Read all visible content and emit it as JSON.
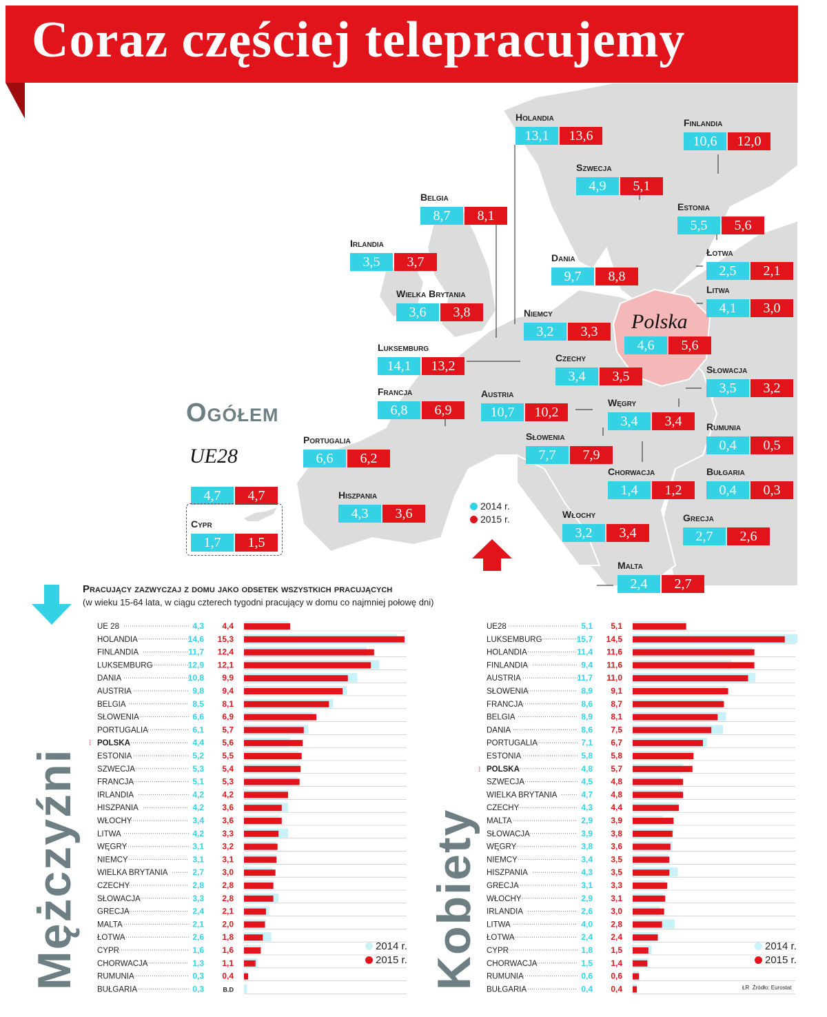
{
  "title": "Coraz częściej telepracujemy",
  "ogolem_label": "Ogółem",
  "polska_label": "Polska",
  "ue28": {
    "name": "UE28",
    "v2014": "4,7",
    "v2015": "4,7"
  },
  "cypr": {
    "name": "Cypr",
    "v2014": "1,7",
    "v2015": "1,5"
  },
  "map_legend": {
    "y2014": "2014 r.",
    "y2015": "2015 r."
  },
  "colors": {
    "y2014": "#35d2e6",
    "y2015": "#e2141b",
    "title_bg": "#e2141b",
    "map_land": "#dcdcdc",
    "poland": "#f5b8b8"
  },
  "chart_data": [
    {
      "type": "bar",
      "panel": "Mężczyźni",
      "title": "Pracujący zazwyczaj z domu jako odsetek wszystkich pracujących",
      "subtitle": "(w wieku 15-64 lata, w ciągu czterech tygodni pracujący w domu co najmniej połowę dni)",
      "legend": [
        "2014 r.",
        "2015 r."
      ],
      "categories": [
        "UE 28",
        "HOLANDIA",
        "FINLANDIA",
        "LUKSEMBURG",
        "DANIA",
        "AUSTRIA",
        "BELGIA",
        "SŁOWENIA",
        "PORTUGALIA",
        "POLSKA",
        "ESTONIA",
        "SZWECJA",
        "FRANCJA",
        "IRLANDIA",
        "HISZPANIA",
        "WŁOCHY",
        "LITWA",
        "WĘGRY",
        "NIEMCY",
        "WIELKA BRYTANIA",
        "CZECHY",
        "SŁOWACJA",
        "GRECJA",
        "MALTA",
        "ŁOTWA",
        "CYPR",
        "CHORWACJA",
        "RUMUNIA",
        "BUŁGARIA"
      ],
      "series": [
        {
          "name": "2014 r.",
          "values": [
            4.3,
            14.6,
            11.7,
            12.9,
            10.8,
            9.8,
            8.5,
            6.6,
            6.1,
            4.4,
            5.2,
            5.3,
            5.1,
            4.2,
            4.2,
            3.4,
            4.2,
            3.1,
            3.1,
            2.7,
            2.8,
            3.3,
            2.4,
            2.1,
            2.6,
            1.6,
            1.3,
            0.3,
            0.3
          ]
        },
        {
          "name": "2015 r.",
          "values": [
            4.4,
            15.3,
            12.4,
            12.1,
            9.9,
            9.4,
            8.1,
            6.9,
            5.7,
            5.6,
            5.5,
            5.4,
            5.3,
            4.2,
            3.6,
            3.6,
            3.3,
            3.2,
            3.1,
            3.0,
            2.8,
            2.8,
            2.1,
            2.0,
            1.8,
            1.6,
            1.1,
            0.4,
            null
          ]
        }
      ],
      "labels2014": [
        "4,3",
        "14,6",
        "11,7",
        "12,9",
        "10,8",
        "9,8",
        "8,5",
        "6,6",
        "6,1",
        "4,4",
        "5,2",
        "5,3",
        "5,1",
        "4,2",
        "4,2",
        "3,4",
        "4,2",
        "3,1",
        "3,1",
        "2,7",
        "2,8",
        "3,3",
        "2,4",
        "2,1",
        "2,6",
        "1,6",
        "1,3",
        "0,3",
        "0,3"
      ],
      "labels2015": [
        "4,4",
        "15,3",
        "12,4",
        "12,1",
        "9,9",
        "9,4",
        "8,1",
        "6,9",
        "5,7",
        "5,6",
        "5,5",
        "5,4",
        "5,3",
        "4,2",
        "3,6",
        "3,6",
        "3,3",
        "3,2",
        "3,1",
        "3,0",
        "2,8",
        "2,8",
        "2,1",
        "2,0",
        "1,8",
        "1,6",
        "1,1",
        "0,4",
        "B.D"
      ],
      "highlight": "POLSKA",
      "xlim": [
        0,
        15.5
      ]
    },
    {
      "type": "bar",
      "panel": "Kobiety",
      "legend": [
        "2014 r.",
        "2015 r."
      ],
      "categories": [
        "UE28",
        "LUKSEMBURG",
        "HOLANDIA",
        "FINLANDIA",
        "AUSTRIA",
        "SŁOWENIA",
        "FRANCJA",
        "BELGIA",
        "DANIA",
        "PORTUGALIA",
        "ESTONIA",
        "POLSKA",
        "SZWECJA",
        "WIELKA BRYTANIA",
        "CZECHY",
        "MALTA",
        "SŁOWACJA",
        "WĘGRY",
        "NIEMCY",
        "HISZPANIA",
        "GRECJA",
        "WŁOCHY",
        "IRLANDIA",
        "LITWA",
        "ŁOTWA",
        "CYPR",
        "CHORWACJA",
        "RUMUNIA",
        "BUŁGARIA"
      ],
      "series": [
        {
          "name": "2014 r.",
          "values": [
            5.1,
            15.7,
            11.4,
            9.4,
            11.7,
            8.9,
            8.6,
            8.9,
            8.6,
            7.1,
            5.8,
            4.8,
            4.5,
            4.7,
            4.3,
            2.9,
            3.9,
            3.8,
            3.4,
            4.3,
            3.1,
            2.9,
            2.6,
            4.0,
            2.4,
            1.8,
            1.5,
            0.6,
            0.4
          ]
        },
        {
          "name": "2015 r.",
          "values": [
            5.1,
            14.5,
            11.6,
            11.6,
            11.0,
            9.1,
            8.7,
            8.1,
            7.5,
            6.7,
            5.8,
            5.7,
            4.8,
            4.8,
            4.4,
            3.9,
            3.8,
            3.6,
            3.5,
            3.5,
            3.3,
            3.1,
            3.0,
            2.8,
            2.4,
            1.5,
            1.4,
            0.6,
            0.4
          ]
        }
      ],
      "labels2014": [
        "5,1",
        "15,7",
        "11,4",
        "9,4",
        "11,7",
        "8,9",
        "8,6",
        "8,9",
        "8,6",
        "7,1",
        "5,8",
        "4,8",
        "4,5",
        "4,7",
        "4,3",
        "2,9",
        "3,9",
        "3,8",
        "3,4",
        "4,3",
        "3,1",
        "2,9",
        "2,6",
        "4,0",
        "2,4",
        "1,8",
        "1,5",
        "0,6",
        "0,4"
      ],
      "labels2015": [
        "5,1",
        "14,5",
        "11,6",
        "11,6",
        "11,0",
        "9,1",
        "8,7",
        "8,1",
        "7,5",
        "6,7",
        "5,8",
        "5,7",
        "4,8",
        "4,8",
        "4,4",
        "3,9",
        "3,8",
        "3,6",
        "3,5",
        "3,5",
        "3,3",
        "3,1",
        "3,0",
        "2,8",
        "2,4",
        "1,5",
        "1,4",
        "0,6",
        "0,4"
      ],
      "highlight": "POLSKA",
      "xlim": [
        0,
        15.5
      ]
    }
  ],
  "map_countries": [
    {
      "name": "Holandia",
      "v2014": "13,1",
      "v2015": "13,6"
    },
    {
      "name": "Finlandia",
      "v2014": "10,6",
      "v2015": "12,0"
    },
    {
      "name": "Szwecja",
      "v2014": "4,9",
      "v2015": "5,1"
    },
    {
      "name": "Belgia",
      "v2014": "8,7",
      "v2015": "8,1"
    },
    {
      "name": "Estonia",
      "v2014": "5,5",
      "v2015": "5,6"
    },
    {
      "name": "Irlandia",
      "v2014": "3,5",
      "v2015": "3,7"
    },
    {
      "name": "Dania",
      "v2014": "9,7",
      "v2015": "8,8"
    },
    {
      "name": "Łotwa",
      "v2014": "2,5",
      "v2015": "2,1"
    },
    {
      "name": "Wielka Brytania",
      "v2014": "3,6",
      "v2015": "3,8"
    },
    {
      "name": "Litwa",
      "v2014": "4,1",
      "v2015": "3,0"
    },
    {
      "name": "Niemcy",
      "v2014": "3,2",
      "v2015": "3,3"
    },
    {
      "name": "Polska",
      "v2014": "4,6",
      "v2015": "5,6"
    },
    {
      "name": "Luksemburg",
      "v2014": "14,1",
      "v2015": "13,2"
    },
    {
      "name": "Czechy",
      "v2014": "3,4",
      "v2015": "3,5"
    },
    {
      "name": "Słowacja",
      "v2014": "3,5",
      "v2015": "3,2"
    },
    {
      "name": "Francja",
      "v2014": "6,8",
      "v2015": "6,9"
    },
    {
      "name": "Austria",
      "v2014": "10,7",
      "v2015": "10,2"
    },
    {
      "name": "Węgry",
      "v2014": "3,4",
      "v2015": "3,4"
    },
    {
      "name": "Rumunia",
      "v2014": "0,4",
      "v2015": "0,5"
    },
    {
      "name": "Portugalia",
      "v2014": "6,6",
      "v2015": "6,2"
    },
    {
      "name": "Słowenia",
      "v2014": "7,7",
      "v2015": "7,9"
    },
    {
      "name": "Chorwacja",
      "v2014": "1,4",
      "v2015": "1,2"
    },
    {
      "name": "Bułgaria",
      "v2014": "0,4",
      "v2015": "0,3"
    },
    {
      "name": "Hiszpania",
      "v2014": "4,3",
      "v2015": "3,6"
    },
    {
      "name": "Włochy",
      "v2014": "3,2",
      "v2015": "3,4"
    },
    {
      "name": "Grecja",
      "v2014": "2,7",
      "v2015": "2,6"
    },
    {
      "name": "Malta",
      "v2014": "2,4",
      "v2015": "2,7"
    }
  ],
  "credits": {
    "author": "ŁR",
    "source": "Źródło: Eurostat"
  }
}
